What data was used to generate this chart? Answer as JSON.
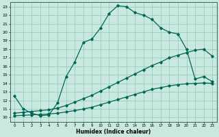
{
  "xlabel": "Humidex (Indice chaleur)",
  "ylabel": "",
  "bg_color": "#c8e8e0",
  "grid_color": "#99ccbb",
  "line_color": "#006655",
  "xlim": [
    -0.5,
    23.5
  ],
  "ylim": [
    9.5,
    23.5
  ],
  "yticks": [
    10,
    11,
    12,
    13,
    14,
    15,
    16,
    17,
    18,
    19,
    20,
    21,
    22,
    23
  ],
  "xticks": [
    0,
    1,
    2,
    3,
    4,
    5,
    6,
    7,
    8,
    9,
    10,
    11,
    12,
    13,
    14,
    15,
    16,
    17,
    18,
    19,
    20,
    21,
    22,
    23
  ],
  "line1_x": [
    0,
    1,
    2,
    3,
    4,
    5,
    6,
    7,
    8,
    9,
    10,
    11,
    12,
    13,
    14,
    15,
    16,
    17,
    18,
    19,
    20,
    21,
    22,
    23
  ],
  "line1_y": [
    12.5,
    11.0,
    10.5,
    10.2,
    10.3,
    11.7,
    14.8,
    16.5,
    18.8,
    19.2,
    20.5,
    22.2,
    23.1,
    23.0,
    22.3,
    22.0,
    21.5,
    20.5,
    20.0,
    19.8,
    18.0,
    14.5,
    14.8,
    14.2
  ],
  "line2_x": [
    0,
    1,
    2,
    3,
    4,
    5,
    6,
    7,
    8,
    9,
    10,
    11,
    12,
    13,
    14,
    15,
    16,
    17,
    18,
    19,
    20,
    21,
    22,
    23
  ],
  "line2_y": [
    10.5,
    10.6,
    10.7,
    10.8,
    10.9,
    11.1,
    11.4,
    11.8,
    12.2,
    12.6,
    13.1,
    13.6,
    14.1,
    14.6,
    15.1,
    15.6,
    16.1,
    16.5,
    17.0,
    17.3,
    17.6,
    17.9,
    18.0,
    17.2
  ],
  "line3_x": [
    0,
    1,
    2,
    3,
    4,
    5,
    6,
    7,
    8,
    9,
    10,
    11,
    12,
    13,
    14,
    15,
    16,
    17,
    18,
    19,
    20,
    21,
    22,
    23
  ],
  "line3_y": [
    10.2,
    10.25,
    10.3,
    10.35,
    10.4,
    10.5,
    10.65,
    10.8,
    11.0,
    11.2,
    11.5,
    11.8,
    12.1,
    12.4,
    12.7,
    13.0,
    13.3,
    13.5,
    13.7,
    13.85,
    13.95,
    14.0,
    14.05,
    14.0
  ],
  "marker": "D",
  "markersize": 1.8,
  "linewidth": 0.9
}
